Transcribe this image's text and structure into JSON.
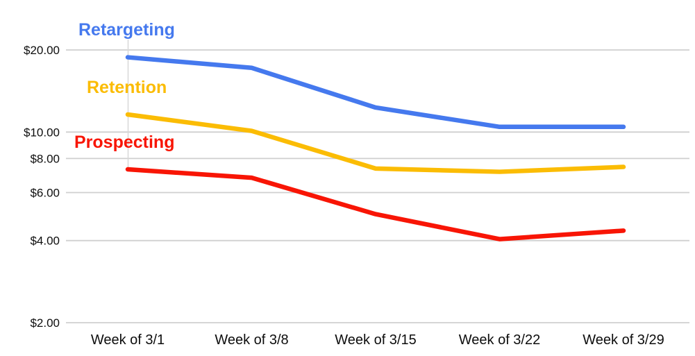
{
  "chart_data": {
    "type": "line",
    "title": "",
    "y_scale": "log",
    "currency": "$",
    "categories": [
      "Week of 3/1",
      "Week of 3/8",
      "Week of 3/15",
      "Week of 3/22",
      "Week of 3/29"
    ],
    "y_ticks": [
      {
        "label": "$2.00",
        "value": 2
      },
      {
        "label": "$4.00",
        "value": 4
      },
      {
        "label": "$6.00",
        "value": 6
      },
      {
        "label": "$8.00",
        "value": 8
      },
      {
        "label": "$10.00",
        "value": 10
      },
      {
        "label": "$20.00",
        "value": 20
      }
    ],
    "ylim": [
      2,
      22
    ],
    "grid": "horizontal",
    "legend_position": "inline-labels",
    "series": [
      {
        "name": "Retargeting",
        "color": "#4579EE",
        "values": [
          18.8,
          17.2,
          12.3,
          10.45,
          10.45
        ]
      },
      {
        "name": "Retention",
        "color": "#FBBC04",
        "values": [
          11.6,
          10.1,
          7.35,
          7.15,
          7.45
        ]
      },
      {
        "name": "Prospecting",
        "color": "#F81505",
        "values": [
          7.3,
          6.8,
          5.0,
          4.05,
          4.35
        ]
      }
    ],
    "colors": {
      "gridline": "#CFCFCF",
      "guide_line": "#D8D8D8",
      "tick_text": "#0d0d0d",
      "background": "#FFFFFF"
    }
  }
}
